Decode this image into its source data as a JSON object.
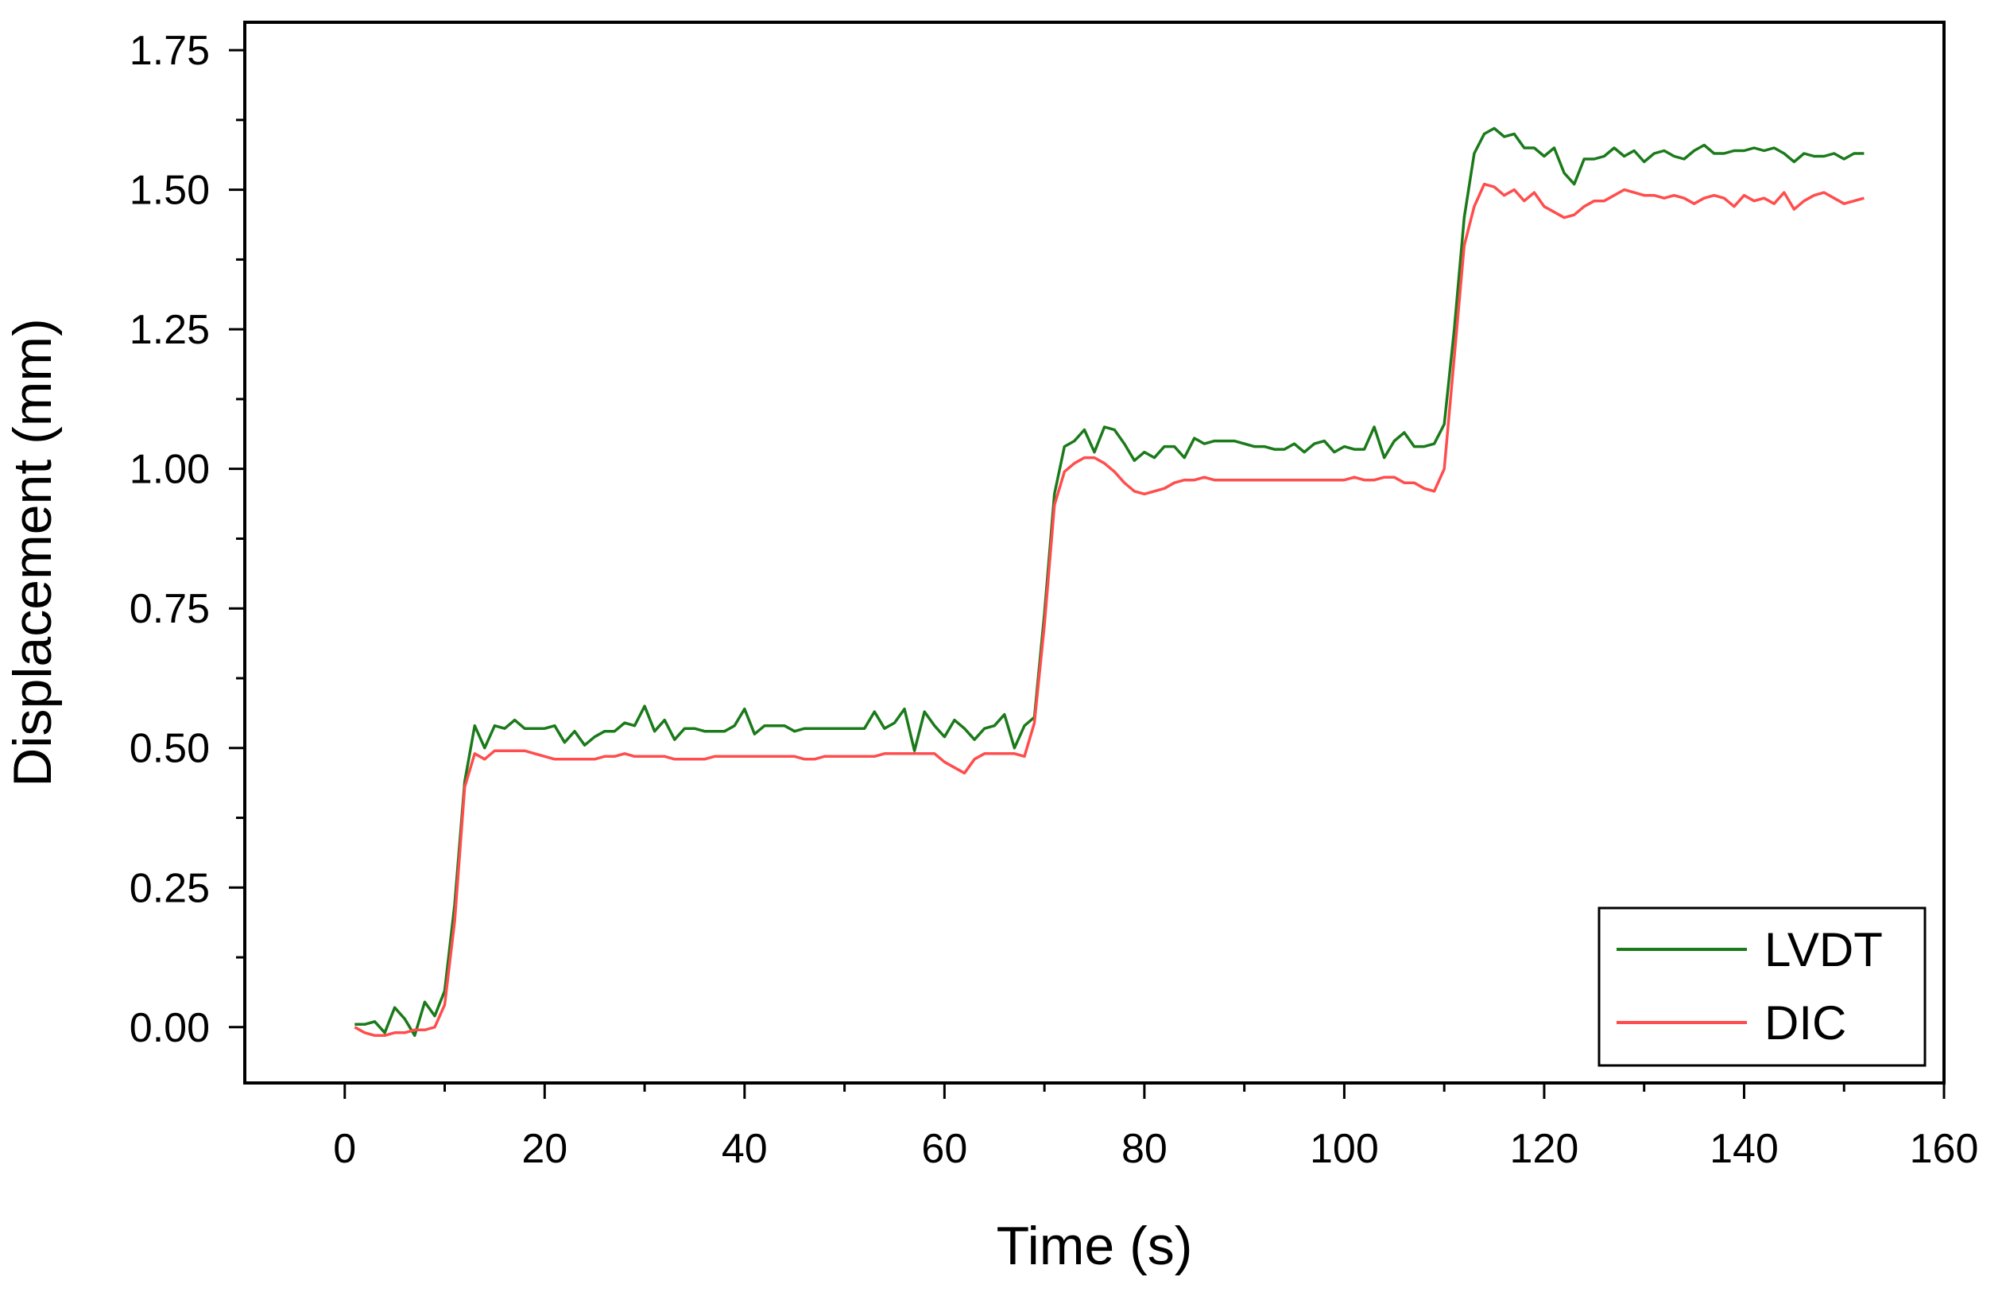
{
  "chart_data": {
    "type": "line",
    "title": "",
    "xlabel": "Time (s)",
    "ylabel": "Displacement (mm)",
    "xlim": [
      -10,
      160
    ],
    "ylim": [
      -0.1,
      1.8
    ],
    "x_ticks": [
      0,
      20,
      40,
      60,
      80,
      100,
      120,
      140,
      160
    ],
    "x_tick_labels": [
      "0",
      "20",
      "40",
      "60",
      "80",
      "100",
      "120",
      "140",
      "160"
    ],
    "y_ticks": [
      0,
      0.25,
      0.5,
      0.75,
      1.0,
      1.25,
      1.5,
      1.75
    ],
    "y_tick_labels": [
      "0.00",
      "0.25",
      "0.50",
      "0.75",
      "1.00",
      "1.25",
      "1.50",
      "1.75"
    ],
    "grid": false,
    "legend_position": "bottom-right",
    "x": [
      1,
      2,
      3,
      4,
      5,
      6,
      7,
      8,
      9,
      10,
      11,
      12,
      13,
      14,
      15,
      16,
      17,
      18,
      19,
      20,
      21,
      22,
      23,
      24,
      25,
      26,
      27,
      28,
      29,
      30,
      31,
      32,
      33,
      34,
      35,
      36,
      37,
      38,
      39,
      40,
      41,
      42,
      43,
      44,
      45,
      46,
      47,
      48,
      49,
      50,
      51,
      52,
      53,
      54,
      55,
      56,
      57,
      58,
      59,
      60,
      61,
      62,
      63,
      64,
      65,
      66,
      67,
      68,
      69,
      70,
      71,
      72,
      73,
      74,
      75,
      76,
      77,
      78,
      79,
      80,
      81,
      82,
      83,
      84,
      85,
      86,
      87,
      88,
      89,
      90,
      91,
      92,
      93,
      94,
      95,
      96,
      97,
      98,
      99,
      100,
      101,
      102,
      103,
      104,
      105,
      106,
      107,
      108,
      109,
      110,
      111,
      112,
      113,
      114,
      115,
      116,
      117,
      118,
      119,
      120,
      121,
      122,
      123,
      124,
      125,
      126,
      127,
      128,
      129,
      130,
      131,
      132,
      133,
      134,
      135,
      136,
      137,
      138,
      139,
      140,
      141,
      142,
      143,
      144,
      145,
      146,
      147,
      148,
      149,
      150,
      151,
      152
    ],
    "series": [
      {
        "name": "LVDT",
        "color": "#1a7a1a",
        "values": [
          0.005,
          0.005,
          0.01,
          -0.01,
          0.035,
          0.015,
          -0.015,
          0.045,
          0.02,
          0.065,
          0.22,
          0.44,
          0.54,
          0.5,
          0.54,
          0.535,
          0.55,
          0.535,
          0.535,
          0.535,
          0.54,
          0.51,
          0.53,
          0.505,
          0.52,
          0.53,
          0.53,
          0.545,
          0.54,
          0.575,
          0.53,
          0.55,
          0.515,
          0.535,
          0.535,
          0.53,
          0.53,
          0.53,
          0.54,
          0.57,
          0.525,
          0.54,
          0.54,
          0.54,
          0.53,
          0.535,
          0.535,
          0.535,
          0.535,
          0.535,
          0.535,
          0.535,
          0.565,
          0.535,
          0.545,
          0.57,
          0.495,
          0.565,
          0.54,
          0.52,
          0.55,
          0.535,
          0.515,
          0.535,
          0.54,
          0.56,
          0.5,
          0.54,
          0.555,
          0.74,
          0.955,
          1.04,
          1.05,
          1.07,
          1.03,
          1.075,
          1.07,
          1.045,
          1.015,
          1.03,
          1.02,
          1.04,
          1.04,
          1.02,
          1.055,
          1.045,
          1.05,
          1.05,
          1.05,
          1.045,
          1.04,
          1.04,
          1.035,
          1.035,
          1.045,
          1.03,
          1.045,
          1.05,
          1.03,
          1.04,
          1.035,
          1.035,
          1.075,
          1.02,
          1.05,
          1.065,
          1.04,
          1.04,
          1.045,
          1.08,
          1.25,
          1.45,
          1.565,
          1.6,
          1.61,
          1.595,
          1.6,
          1.575,
          1.575,
          1.56,
          1.575,
          1.53,
          1.51,
          1.555,
          1.555,
          1.56,
          1.575,
          1.56,
          1.57,
          1.55,
          1.565,
          1.57,
          1.56,
          1.555,
          1.57,
          1.58,
          1.565,
          1.565,
          1.57,
          1.57,
          1.575,
          1.57,
          1.575,
          1.565,
          1.55,
          1.565,
          1.56,
          1.56,
          1.565,
          1.555,
          1.565,
          1.565
        ]
      },
      {
        "name": "DIC",
        "color": "#ff4d4d",
        "values": [
          0.0,
          -0.01,
          -0.015,
          -0.015,
          -0.01,
          -0.01,
          -0.005,
          -0.005,
          0.0,
          0.04,
          0.19,
          0.43,
          0.49,
          0.48,
          0.495,
          0.495,
          0.495,
          0.495,
          0.49,
          0.485,
          0.48,
          0.48,
          0.48,
          0.48,
          0.48,
          0.485,
          0.485,
          0.49,
          0.485,
          0.485,
          0.485,
          0.485,
          0.48,
          0.48,
          0.48,
          0.48,
          0.485,
          0.485,
          0.485,
          0.485,
          0.485,
          0.485,
          0.485,
          0.485,
          0.485,
          0.48,
          0.48,
          0.485,
          0.485,
          0.485,
          0.485,
          0.485,
          0.485,
          0.49,
          0.49,
          0.49,
          0.49,
          0.49,
          0.49,
          0.475,
          0.465,
          0.455,
          0.48,
          0.49,
          0.49,
          0.49,
          0.49,
          0.485,
          0.545,
          0.72,
          0.935,
          0.995,
          1.01,
          1.02,
          1.02,
          1.01,
          0.995,
          0.975,
          0.96,
          0.955,
          0.96,
          0.965,
          0.975,
          0.98,
          0.98,
          0.985,
          0.98,
          0.98,
          0.98,
          0.98,
          0.98,
          0.98,
          0.98,
          0.98,
          0.98,
          0.98,
          0.98,
          0.98,
          0.98,
          0.98,
          0.985,
          0.98,
          0.98,
          0.985,
          0.985,
          0.975,
          0.975,
          0.965,
          0.96,
          1.0,
          1.2,
          1.4,
          1.47,
          1.51,
          1.505,
          1.49,
          1.5,
          1.48,
          1.495,
          1.47,
          1.46,
          1.45,
          1.455,
          1.47,
          1.48,
          1.48,
          1.49,
          1.5,
          1.495,
          1.49,
          1.49,
          1.485,
          1.49,
          1.485,
          1.475,
          1.485,
          1.49,
          1.485,
          1.47,
          1.49,
          1.48,
          1.485,
          1.475,
          1.495,
          1.465,
          1.48,
          1.49,
          1.495,
          1.485,
          1.475,
          1.48,
          1.485
        ]
      }
    ]
  }
}
